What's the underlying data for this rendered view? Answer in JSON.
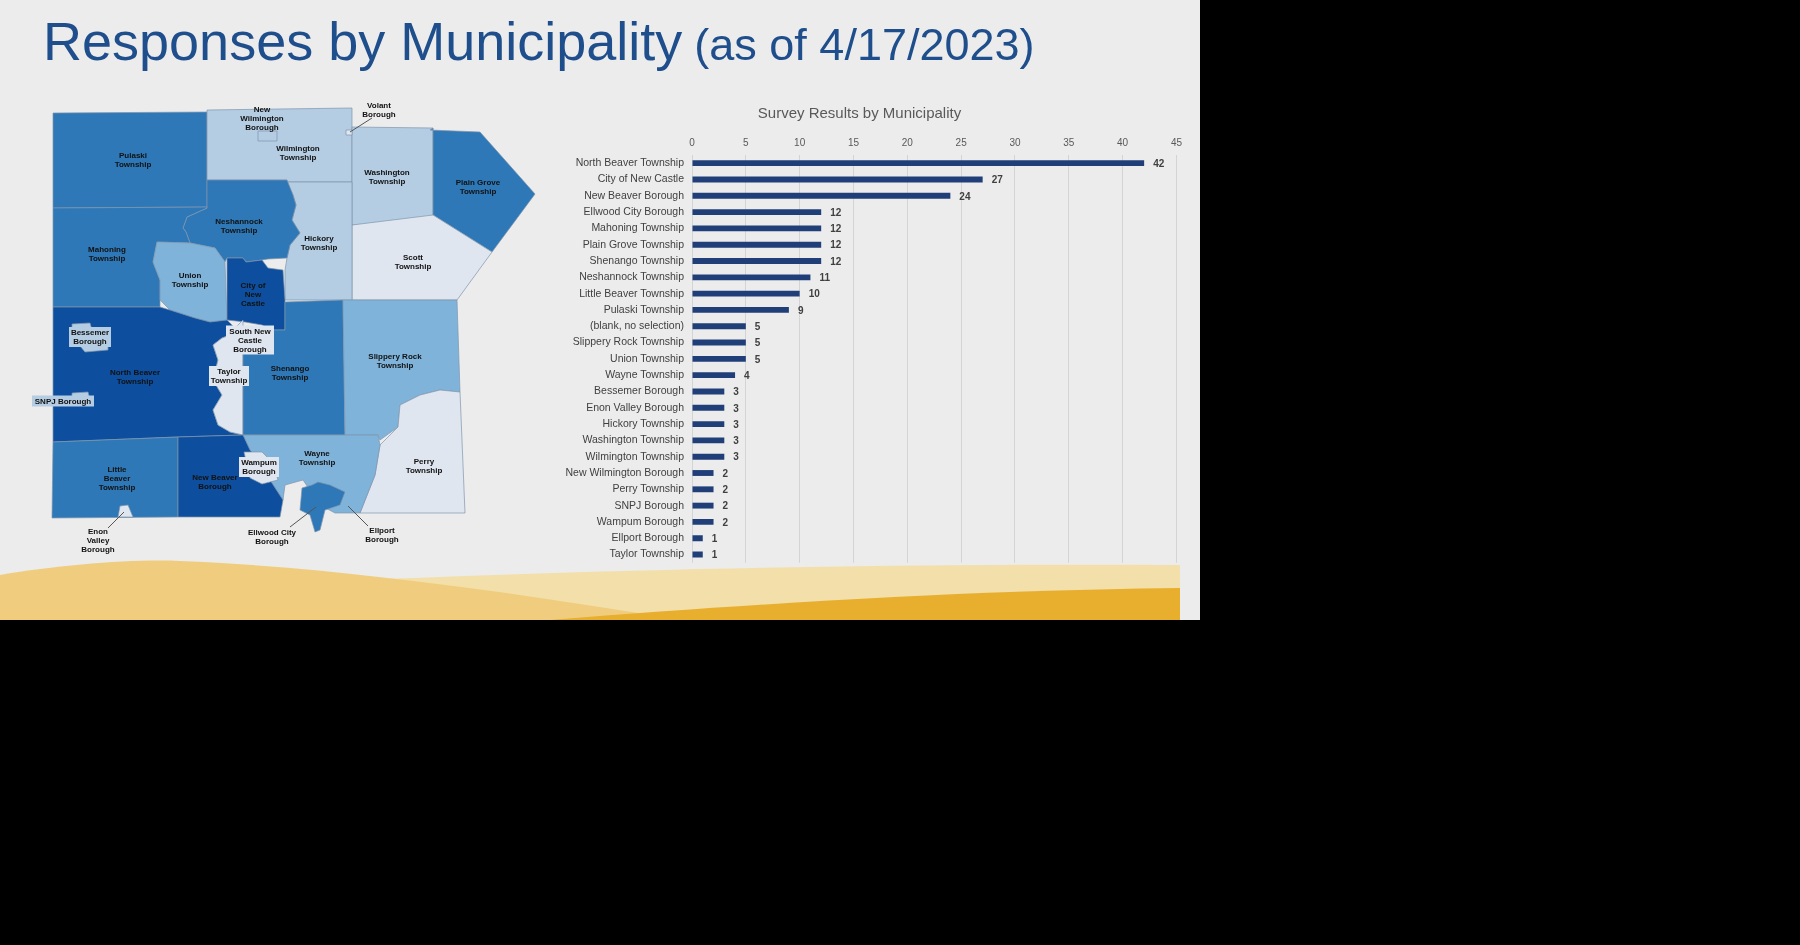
{
  "chart_data": [
    {
      "type": "other",
      "title": "Responses by Municipality",
      "subtitle": "(as of 4/17/2023)",
      "annotations": [
        "New Wilmington Borough",
        "Volant Borough",
        "Pulaski Township",
        "Wilmington Township",
        "Washington Township",
        "Plain Grove Township",
        "Neshannock Township",
        "Hickory Township",
        "Mahoning Township",
        "Scott Township",
        "Union Township",
        "City of New Castle",
        "Bessemer Borough",
        "South New Castle Borough",
        "North Beaver Township",
        "Taylor Township",
        "Shenango Township",
        "Slippery Rock Township",
        "SNPJ Borough",
        "Little Beaver Township",
        "New Beaver Borough",
        "Wampum Borough",
        "Wayne Township",
        "Perry Township",
        "Enon Valley Borough",
        "Ellwood City Borough",
        "Ellport Borough"
      ]
    },
    {
      "type": "bar",
      "title": "Survey Results by Municipality",
      "orientation": "horizontal",
      "categories": [
        "North Beaver Township",
        "City of New Castle",
        "New Beaver Borough",
        "Ellwood City Borough",
        "Mahoning Township",
        "Plain Grove Township",
        "Shenango Township",
        "Neshannock Township",
        "Little Beaver Township",
        "Pulaski Township",
        "(blank, no selection)",
        "Slippery Rock Township",
        "Union Township",
        "Wayne Township",
        "Bessemer Borough",
        "Enon Valley Borough",
        "Hickory Township",
        "Washington Township",
        "Wilmington Township",
        "New Wilmington Borough",
        "Perry Township",
        "SNPJ Borough",
        "Wampum Borough",
        "Ellport Borough",
        "Taylor Township"
      ],
      "values": [
        42,
        27,
        24,
        12,
        12,
        12,
        12,
        11,
        10,
        9,
        5,
        5,
        5,
        4,
        3,
        3,
        3,
        3,
        3,
        2,
        2,
        2,
        2,
        1,
        1
      ],
      "color": "#203f78",
      "xlim": [
        0,
        45
      ],
      "xticks": [
        0,
        5,
        10,
        15,
        20,
        25,
        30,
        35,
        40,
        45
      ],
      "grid": "x",
      "data_labels": true
    }
  ]
}
